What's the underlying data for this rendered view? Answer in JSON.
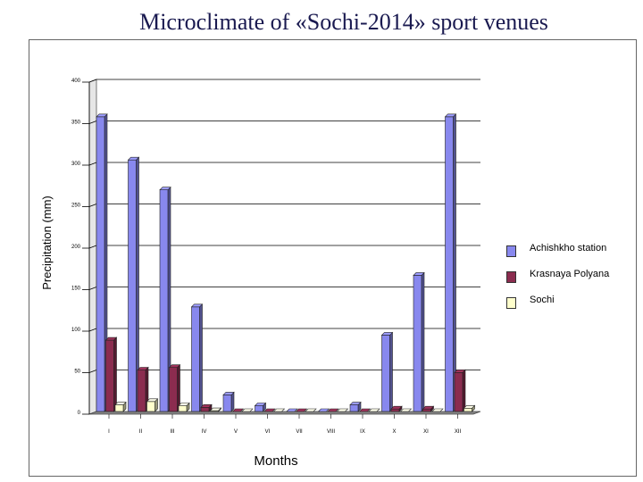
{
  "title": "Microclimate of «Sochi-2014» sport venues",
  "chart_data": {
    "type": "bar",
    "title": "Microclimate of «Sochi-2014» sport venues",
    "xlabel": "Months",
    "ylabel": "Precipitation (mm)",
    "ylim": [
      0,
      400
    ],
    "yticks": [
      "0",
      "50",
      "100",
      "150",
      "200",
      "250",
      "300",
      "350",
      "400"
    ],
    "categories": [
      "I",
      "II",
      "III",
      "IV",
      "V",
      "VI",
      "VII",
      "VIII",
      "IX",
      "X",
      "XI",
      "XII"
    ],
    "series": [
      {
        "name": "Achishkho station",
        "color": "#8888ee",
        "values": [
          355,
          303,
          267,
          126,
          20,
          7,
          0,
          0,
          8,
          92,
          164,
          355
        ]
      },
      {
        "name": "Krasnaya Polyana",
        "color": "#8b2c4f",
        "values": [
          86,
          50,
          53,
          5,
          0,
          0,
          0,
          0,
          0,
          3,
          3,
          47
        ]
      },
      {
        "name": "Sochi",
        "color": "#ffffcc",
        "values": [
          8,
          12,
          7,
          1,
          0,
          0,
          0,
          0,
          0,
          0,
          0,
          4
        ]
      }
    ],
    "grid": true,
    "legend_position": "right"
  }
}
